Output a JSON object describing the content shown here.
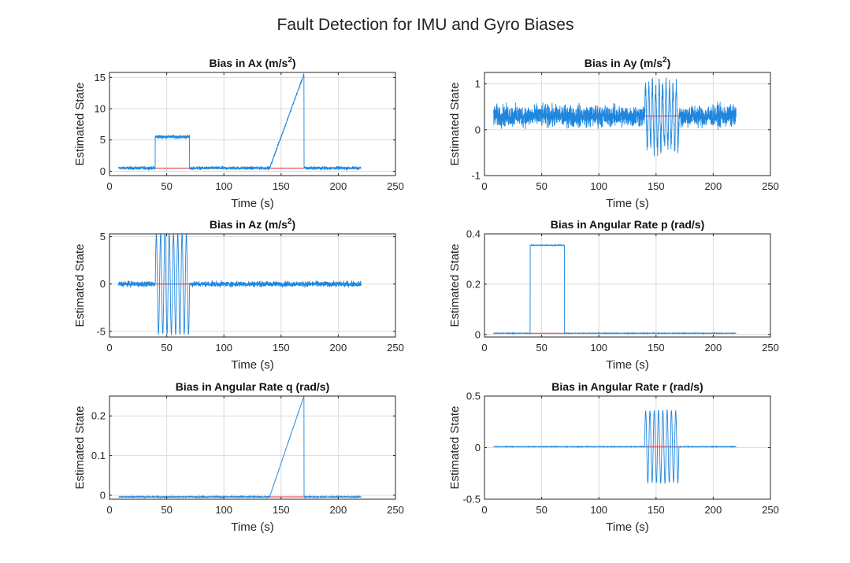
{
  "figure": {
    "title": "Fault Detection for IMU and Gyro Biases"
  },
  "colors": {
    "estimate": "#1f86de",
    "reference": "#e0303b"
  },
  "chart_data": [
    {
      "id": "ax",
      "type": "line",
      "title": "Bias in Ax (m/s",
      "title_sup": "2",
      "title_close": ")",
      "xlabel": "Time (s)",
      "ylabel": "Estimated State",
      "xlim": [
        0,
        250
      ],
      "ylim": [
        -0.7,
        15.8
      ],
      "xticks": [
        0,
        50,
        100,
        150,
        200,
        250
      ],
      "yticks": [
        0,
        5,
        10,
        15
      ],
      "grid": true,
      "t_range": [
        8,
        220
      ],
      "estimate_segments": [
        {
          "t": [
            8,
            40
          ],
          "kind": "constant",
          "value": 0.5,
          "noise": 0.22
        },
        {
          "t": [
            40,
            70
          ],
          "kind": "constant",
          "value": 5.5,
          "noise": 0.25
        },
        {
          "t": [
            70,
            140
          ],
          "kind": "constant",
          "value": 0.5,
          "noise": 0.22
        },
        {
          "t": [
            140,
            170
          ],
          "kind": "ramp",
          "from": 0.5,
          "to": 15.5,
          "noise": 0.2
        },
        {
          "t": [
            170,
            220
          ],
          "kind": "constant",
          "value": 0.5,
          "noise": 0.22
        }
      ],
      "reference_segments": [
        {
          "t": [
            40,
            70
          ],
          "value": 0.5
        },
        {
          "t": [
            140,
            170
          ],
          "value": 0.5
        }
      ]
    },
    {
      "id": "ay",
      "type": "line",
      "title": "Bias in Ay (m/s",
      "title_sup": "2",
      "title_close": ")",
      "xlabel": "Time (s)",
      "ylabel": "Estimated State",
      "xlim": [
        0,
        250
      ],
      "ylim": [
        -1,
        1.25
      ],
      "xticks": [
        0,
        50,
        100,
        150,
        200,
        250
      ],
      "yticks": [
        -1,
        0,
        1
      ],
      "grid": true,
      "t_range": [
        8,
        220
      ],
      "estimate_segments": [
        {
          "t": [
            8,
            140
          ],
          "kind": "constant",
          "value": 0.3,
          "noise": 0.2
        },
        {
          "t": [
            140,
            170
          ],
          "kind": "oscillation",
          "center": 0.3,
          "amplitude": 0.65,
          "period": 3.0,
          "noise": 0.2
        },
        {
          "t": [
            170,
            220
          ],
          "kind": "constant",
          "value": 0.3,
          "noise": 0.2
        }
      ],
      "reference_segments": [
        {
          "t": [
            140,
            170
          ],
          "value": 0.3
        }
      ]
    },
    {
      "id": "az",
      "type": "line",
      "title": "Bias in Az (m/s",
      "title_sup": "2",
      "title_close": ")",
      "xlabel": "Time (s)",
      "ylabel": "Estimated State",
      "xlim": [
        0,
        250
      ],
      "ylim": [
        -5.6,
        5.3
      ],
      "xticks": [
        0,
        50,
        100,
        150,
        200,
        250
      ],
      "yticks": [
        -5,
        0,
        5
      ],
      "grid": true,
      "t_range": [
        8,
        220
      ],
      "estimate_segments": [
        {
          "t": [
            8,
            40
          ],
          "kind": "constant",
          "value": 0,
          "noise": 0.25
        },
        {
          "t": [
            40,
            70
          ],
          "kind": "oscillation",
          "center": 0,
          "amplitude": 5.3,
          "period": 3.75,
          "noise": 0.1
        },
        {
          "t": [
            70,
            220
          ],
          "kind": "constant",
          "value": 0,
          "noise": 0.25
        }
      ],
      "reference_segments": [
        {
          "t": [
            40,
            70
          ],
          "value": 0
        }
      ]
    },
    {
      "id": "p",
      "type": "line",
      "title": "Bias in Angular Rate p (rad/s)",
      "title_sup": "",
      "title_close": "",
      "xlabel": "Time (s)",
      "ylabel": "Estimated State",
      "xlim": [
        0,
        250
      ],
      "ylim": [
        -0.01,
        0.4
      ],
      "xticks": [
        0,
        50,
        100,
        150,
        200,
        250
      ],
      "yticks": [
        0,
        0.2,
        0.4
      ],
      "grid": true,
      "t_range": [
        8,
        220
      ],
      "estimate_segments": [
        {
          "t": [
            8,
            40
          ],
          "kind": "constant",
          "value": 0.005,
          "noise": 0.0008
        },
        {
          "t": [
            40,
            70
          ],
          "kind": "constant",
          "value": 0.355,
          "noise": 0.001
        },
        {
          "t": [
            70,
            220
          ],
          "kind": "constant",
          "value": 0.005,
          "noise": 0.0008
        }
      ],
      "reference_segments": [
        {
          "t": [
            40,
            70
          ],
          "value": 0.005
        }
      ]
    },
    {
      "id": "q",
      "type": "line",
      "title": "Bias in Angular Rate q (rad/s)",
      "title_sup": "",
      "title_close": "",
      "xlabel": "Time (s)",
      "ylabel": "Estimated State",
      "xlim": [
        0,
        250
      ],
      "ylim": [
        -0.01,
        0.25
      ],
      "xticks": [
        0,
        50,
        100,
        150,
        200,
        250
      ],
      "yticks": [
        0,
        0.1,
        0.2
      ],
      "grid": true,
      "t_range": [
        8,
        220
      ],
      "estimate_segments": [
        {
          "t": [
            8,
            140
          ],
          "kind": "constant",
          "value": -0.004,
          "noise": 0.0012
        },
        {
          "t": [
            140,
            170
          ],
          "kind": "ramp",
          "from": -0.004,
          "to": 0.25,
          "noise": 0.001
        },
        {
          "t": [
            170,
            220
          ],
          "kind": "constant",
          "value": -0.004,
          "noise": 0.0012
        }
      ],
      "reference_segments": [
        {
          "t": [
            140,
            170
          ],
          "value": -0.004
        }
      ]
    },
    {
      "id": "r",
      "type": "line",
      "title": "Bias in Angular Rate r (rad/s)",
      "title_sup": "",
      "title_close": "",
      "xlabel": "Time (s)",
      "ylabel": "Estimated State",
      "xlim": [
        0,
        250
      ],
      "ylim": [
        -0.5,
        0.5
      ],
      "xticks": [
        0,
        50,
        100,
        150,
        200,
        250
      ],
      "yticks": [
        -0.5,
        0,
        0.5
      ],
      "grid": true,
      "t_range": [
        8,
        220
      ],
      "estimate_segments": [
        {
          "t": [
            8,
            140
          ],
          "kind": "constant",
          "value": 0.01,
          "noise": 0.002
        },
        {
          "t": [
            140,
            170
          ],
          "kind": "oscillation",
          "center": 0.01,
          "amplitude": 0.35,
          "period": 3.75,
          "noise": 0.01
        },
        {
          "t": [
            170,
            220
          ],
          "kind": "constant",
          "value": 0.01,
          "noise": 0.002
        }
      ],
      "reference_segments": [
        {
          "t": [
            140,
            170
          ],
          "value": 0.01
        }
      ]
    }
  ]
}
